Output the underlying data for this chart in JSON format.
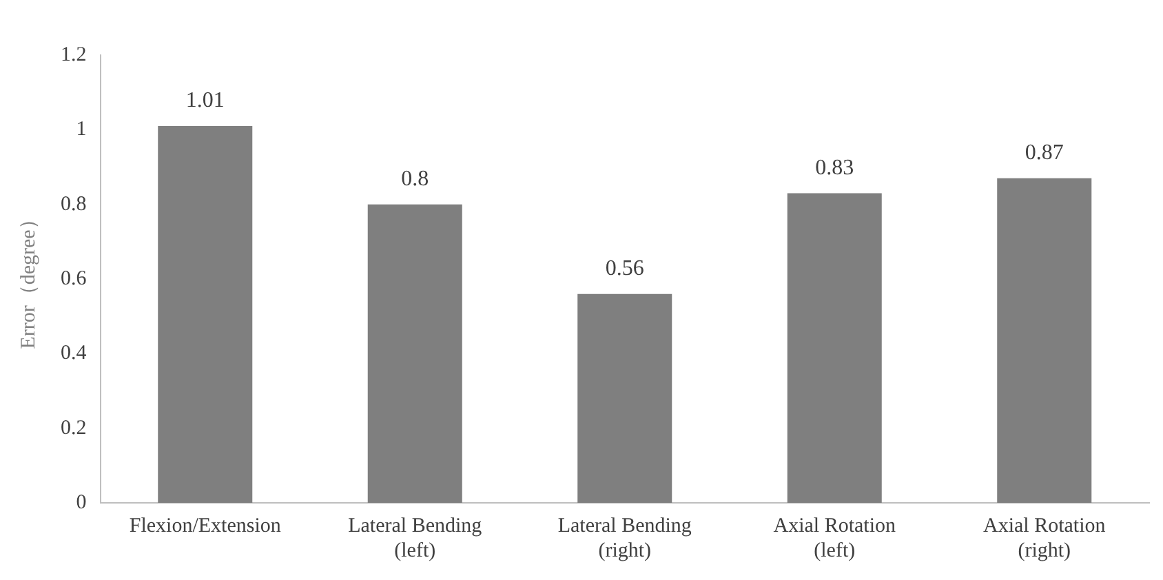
{
  "chart_data": {
    "type": "bar",
    "ylabel": "Error（degree）",
    "categories": [
      "Flexion/Extension",
      "Lateral Bending (left)",
      "Lateral Bending (right)",
      "Axial Rotation (left)",
      "Axial Rotation (right)"
    ],
    "values": [
      1.01,
      0.8,
      0.56,
      0.83,
      0.87
    ],
    "color": "#7f7f7f",
    "ylim": [
      0,
      1.2
    ],
    "yticks": [
      0,
      0.2,
      0.4,
      0.6,
      0.8,
      1,
      1.2
    ],
    "grid": false,
    "data_labels": true
  }
}
